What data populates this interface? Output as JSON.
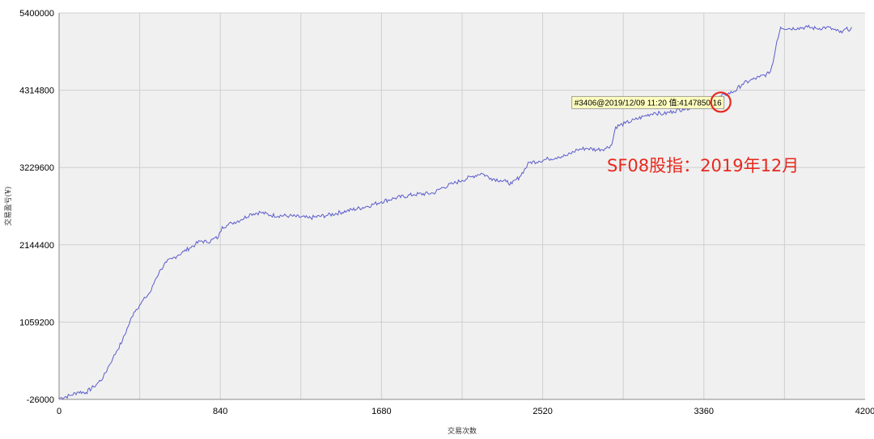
{
  "chart_data": {
    "type": "line",
    "title": "",
    "xlabel": "交易次数",
    "ylabel": "交易盈亏(¥)",
    "xlim": [
      0,
      4200
    ],
    "ylim": [
      -26000,
      5400000
    ],
    "x_ticks": [
      "0",
      "840",
      "1680",
      "2520",
      "3360",
      "4200"
    ],
    "y_ticks": [
      "5400000",
      "4314800",
      "3229600",
      "2144400",
      "1059200",
      "-26000"
    ],
    "grid": true,
    "annotation": "SF08股指：2019年12月",
    "tooltip": "#3406@2019/12/09 11:20 值:4147850.16",
    "marker": {
      "x": 3406,
      "y": 4147850
    },
    "colors": {
      "line": "#5c5ccc",
      "plot_bg": "#f0f0f0",
      "grid": "#cfcfcf",
      "annotation": "#e8281e",
      "tooltip_bg": "#ffffc0"
    },
    "series": [
      {
        "name": "",
        "x": [
          0,
          60,
          100,
          140,
          180,
          200,
          230,
          260,
          280,
          300,
          330,
          360,
          390,
          420,
          450,
          480,
          500,
          530,
          560,
          590,
          620,
          650,
          680,
          710,
          740,
          770,
          800,
          830,
          850,
          880,
          900,
          950,
          1000,
          1050,
          1100,
          1200,
          1300,
          1400,
          1500,
          1600,
          1680,
          1750,
          1850,
          1950,
          2000,
          2050,
          2100,
          2150,
          2200,
          2250,
          2300,
          2330,
          2360,
          2400,
          2450,
          2500,
          2550,
          2600,
          2650,
          2700,
          2750,
          2800,
          2850,
          2880,
          2900,
          2950,
          3000,
          3050,
          3100,
          3150,
          3200,
          3250,
          3300,
          3350,
          3406,
          3430,
          3470,
          3520,
          3560,
          3600,
          3650,
          3700,
          3720,
          3740,
          3760,
          3800,
          3850,
          3900,
          3950,
          4000,
          4050,
          4080,
          4100,
          4110,
          4130
        ],
        "y": [
          -10000,
          30000,
          80000,
          70000,
          150000,
          200000,
          280000,
          450000,
          550000,
          650000,
          800000,
          1000000,
          1200000,
          1300000,
          1400000,
          1500000,
          1650000,
          1800000,
          1900000,
          1950000,
          2000000,
          2050000,
          2100000,
          2150000,
          2200000,
          2180000,
          2220000,
          2250000,
          2400000,
          2420000,
          2450000,
          2500000,
          2580000,
          2600000,
          2560000,
          2550000,
          2520000,
          2560000,
          2620000,
          2680000,
          2750000,
          2800000,
          2850000,
          2870000,
          2950000,
          3000000,
          3050000,
          3100000,
          3150000,
          3080000,
          3050000,
          3030000,
          3000000,
          3100000,
          3300000,
          3320000,
          3350000,
          3380000,
          3400000,
          3480000,
          3500000,
          3480000,
          3500000,
          3550000,
          3800000,
          3850000,
          3900000,
          3950000,
          4000000,
          3980000,
          4020000,
          4050000,
          4080000,
          4100000,
          4147850,
          4200000,
          4250000,
          4300000,
          4400000,
          4450000,
          4500000,
          4550000,
          4700000,
          5000000,
          5200000,
          5180000,
          5190000,
          5200000,
          5180000,
          5200000,
          5150000,
          5120000,
          5180000,
          5160000,
          5200000
        ]
      }
    ]
  }
}
